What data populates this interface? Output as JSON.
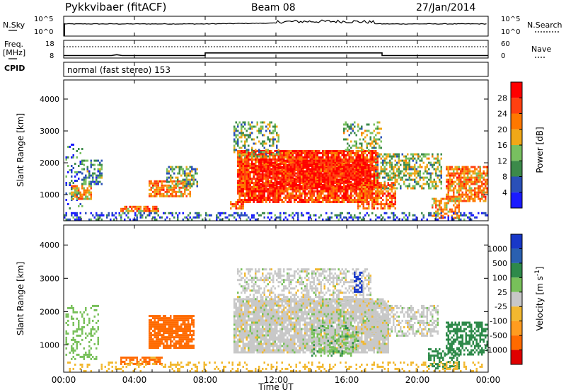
{
  "header": {
    "title": "Pykkvibaer (fitACF)",
    "beam": "Beam 08",
    "date": "27/Jan/2014"
  },
  "panel_labels": {
    "nsky": "N.Sky",
    "nsky_hi": "10^5",
    "nsky_lo": "10^0",
    "nsearch": "N.Search",
    "nsearch_hi": "10^5",
    "nsearch_lo": "10^0",
    "freq_label_1": "Freq.",
    "freq_label_2": "[MHz]",
    "freq_hi": "18",
    "freq_lo": "8",
    "nave": "Nave",
    "nave_hi": "60",
    "nave_lo": "0",
    "cpid": "CPID",
    "cpid_text": "normal (fast stereo) 153"
  },
  "colors": {
    "power_scale": [
      "#1a1aff",
      "#2a50b8",
      "#3c8a4a",
      "#78c060",
      "#f0a818",
      "#ff7800",
      "#ff4010",
      "#ff0000"
    ],
    "velocity_scale": [
      "#e00000",
      "#ff6a00",
      "#ff9c20",
      "#f2b830",
      "#c8c8c8",
      "#c8c8c8",
      "#78c05a",
      "#58a040",
      "#2e8a4a",
      "#2a60b0",
      "#1838c8"
    ]
  },
  "chart_data": [
    {
      "type": "heatmap",
      "parameter": "Power",
      "ylabel": "Slant Range [km]",
      "ylim": [
        180,
        4600
      ],
      "yticks": [
        "1000",
        "2000",
        "3000",
        "4000"
      ],
      "xlim": [
        "00:00",
        "24:00"
      ],
      "colorbar_label": "Power [dB]",
      "colorbar_ticks": [
        "4",
        "8",
        "12",
        "16",
        "20",
        "24",
        "28"
      ],
      "colorbar_range": [
        0,
        32
      ],
      "regions": [
        {
          "t_start": 0.1,
          "t_end": 1.1,
          "r_start": 600,
          "r_end": 2600,
          "power": 8,
          "density": 0.25
        },
        {
          "t_start": 1.0,
          "t_end": 2.2,
          "r_start": 1350,
          "r_end": 2100,
          "power": 10,
          "density": 0.5
        },
        {
          "t_start": 0.4,
          "t_end": 1.6,
          "r_start": 900,
          "r_end": 1300,
          "power": 20,
          "density": 0.7
        },
        {
          "t_start": 4.8,
          "t_end": 7.2,
          "r_start": 950,
          "r_end": 1450,
          "power": 22,
          "density": 0.75
        },
        {
          "t_start": 5.8,
          "t_end": 7.6,
          "r_start": 1300,
          "r_end": 1900,
          "power": 12,
          "density": 0.5
        },
        {
          "t_start": 3.2,
          "t_end": 5.4,
          "r_start": 480,
          "r_end": 650,
          "power": 22,
          "density": 0.8
        },
        {
          "t_start": 9.4,
          "t_end": 10.2,
          "r_start": 550,
          "r_end": 800,
          "power": 24,
          "density": 0.7
        },
        {
          "t_start": 9.8,
          "t_end": 17.8,
          "r_start": 800,
          "r_end": 2400,
          "power": 26,
          "density": 0.9
        },
        {
          "t_start": 11.0,
          "t_end": 17.4,
          "r_start": 1200,
          "r_end": 2100,
          "power": 30,
          "density": 0.75
        },
        {
          "t_start": 9.6,
          "t_end": 12.2,
          "r_start": 2200,
          "r_end": 3300,
          "power": 12,
          "density": 0.45
        },
        {
          "t_start": 15.8,
          "t_end": 18.0,
          "r_start": 2400,
          "r_end": 3300,
          "power": 14,
          "density": 0.4
        },
        {
          "t_start": 17.6,
          "t_end": 21.4,
          "r_start": 1200,
          "r_end": 2300,
          "power": 14,
          "density": 0.55
        },
        {
          "t_start": 16.6,
          "t_end": 18.8,
          "r_start": 600,
          "r_end": 1400,
          "power": 24,
          "density": 0.65
        },
        {
          "t_start": 21.6,
          "t_end": 24.0,
          "r_start": 800,
          "r_end": 1900,
          "power": 22,
          "density": 0.75
        },
        {
          "t_start": 20.8,
          "t_end": 22.4,
          "r_start": 300,
          "r_end": 900,
          "power": 20,
          "density": 0.6
        },
        {
          "t_start": 0.0,
          "t_end": 24.0,
          "r_start": 200,
          "r_end": 450,
          "power": 6,
          "density": 0.35
        }
      ]
    },
    {
      "type": "heatmap",
      "parameter": "Velocity",
      "ylabel": "Slant Range [km]",
      "ylim": [
        180,
        4600
      ],
      "yticks": [
        "1000",
        "2000",
        "3000",
        "4000"
      ],
      "xlabel": "Time UT",
      "xticks": [
        "00:00",
        "04:00",
        "08:00",
        "12:00",
        "16:00",
        "20:00",
        "00:00"
      ],
      "xlim": [
        "00:00",
        "24:00"
      ],
      "colorbar_label": "Velocity [m s^-1]",
      "colorbar_ticks": [
        "1000",
        "500",
        "100",
        "25",
        "-25",
        "-100",
        "-500",
        "-1000"
      ],
      "regions": [
        {
          "t_start": 0.1,
          "t_end": 2.0,
          "r_start": 600,
          "r_end": 2200,
          "velocity": 60,
          "density": 0.3
        },
        {
          "t_start": 4.8,
          "t_end": 7.4,
          "r_start": 900,
          "r_end": 1900,
          "velocity": -150,
          "density": 0.85
        },
        {
          "t_start": 3.2,
          "t_end": 5.6,
          "r_start": 420,
          "r_end": 650,
          "velocity": -120,
          "density": 0.75
        },
        {
          "t_start": 9.6,
          "t_end": 18.4,
          "r_start": 800,
          "r_end": 2400,
          "velocity": 0,
          "density": 0.9
        },
        {
          "t_start": 9.8,
          "t_end": 17.4,
          "r_start": 2300,
          "r_end": 3300,
          "velocity": 0,
          "density": 0.5
        },
        {
          "t_start": 14.0,
          "t_end": 16.6,
          "r_start": 700,
          "r_end": 1600,
          "velocity": 80,
          "density": 0.35
        },
        {
          "t_start": 16.4,
          "t_end": 16.8,
          "r_start": 2600,
          "r_end": 3200,
          "velocity": 900,
          "density": 0.7
        },
        {
          "t_start": 17.0,
          "t_end": 21.2,
          "r_start": 1300,
          "r_end": 2200,
          "velocity": 0,
          "density": 0.55
        },
        {
          "t_start": 21.6,
          "t_end": 24.0,
          "r_start": 700,
          "r_end": 1700,
          "velocity": 300,
          "density": 0.6
        },
        {
          "t_start": 20.6,
          "t_end": 22.4,
          "r_start": 300,
          "r_end": 900,
          "velocity": 400,
          "density": 0.5
        },
        {
          "t_start": 0.0,
          "t_end": 24.0,
          "r_start": 200,
          "r_end": 500,
          "velocity": -60,
          "density": 0.25
        }
      ]
    },
    {
      "type": "line",
      "parameter": "N.Sky",
      "x_hours": [
        0,
        4,
        8,
        10,
        12,
        14,
        16,
        17,
        18,
        20,
        24
      ],
      "log10_value": [
        3.0,
        3.0,
        3.0,
        3.1,
        3.2,
        3.3,
        3.3,
        3.2,
        3.0,
        3.0,
        3.0
      ]
    },
    {
      "type": "line",
      "parameter": "Freq.",
      "unit": "MHz",
      "x_hours": [
        0,
        2.7,
        3.0,
        3.3,
        8.0,
        8.0,
        18.0,
        18.0,
        24
      ],
      "values": [
        9.0,
        9.0,
        9.5,
        9.0,
        9.0,
        10.5,
        10.5,
        9.0,
        9.0
      ]
    }
  ]
}
